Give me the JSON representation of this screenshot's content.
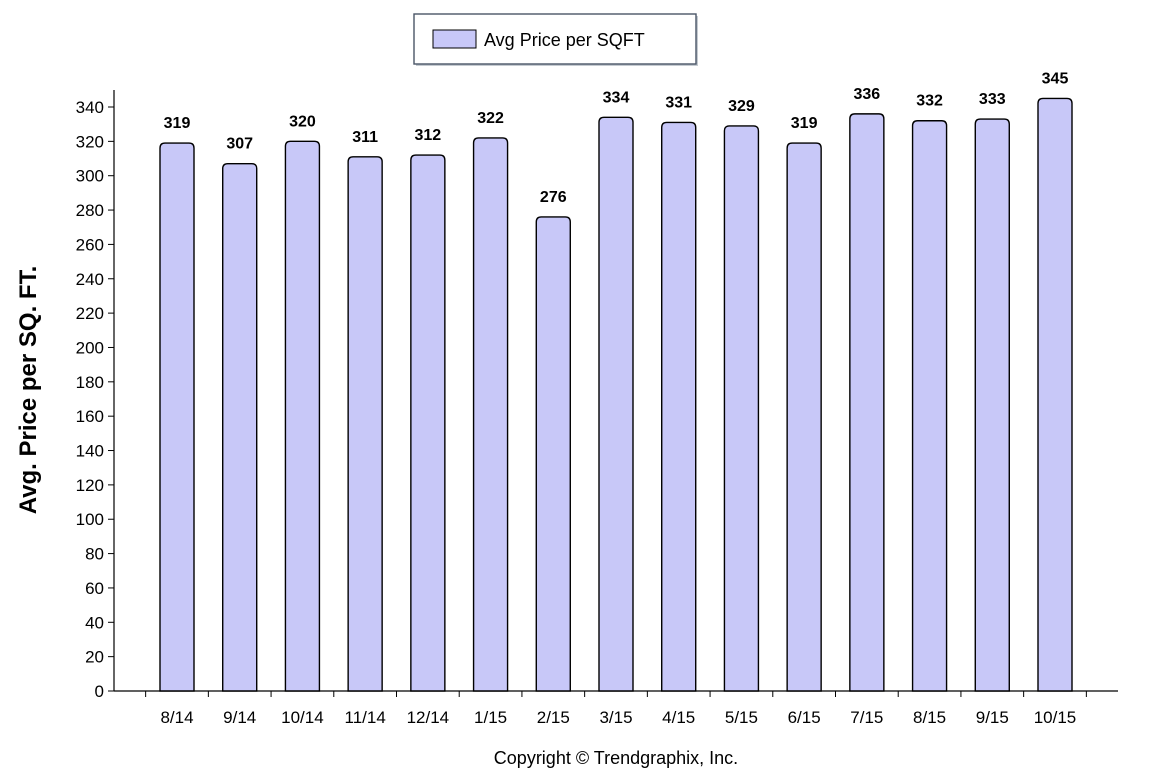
{
  "chart_data": {
    "type": "bar",
    "categories": [
      "8/14",
      "9/14",
      "10/14",
      "11/14",
      "12/14",
      "1/15",
      "2/15",
      "3/15",
      "4/15",
      "5/15",
      "6/15",
      "7/15",
      "8/15",
      "9/15",
      "10/15"
    ],
    "series": [
      {
        "name": "Avg Price per SQFT",
        "values": [
          319,
          307,
          320,
          311,
          312,
          322,
          276,
          334,
          331,
          329,
          319,
          336,
          332,
          333,
          345
        ],
        "color": "#c8c8f8"
      }
    ],
    "data_labels": [
      "319",
      "307",
      "320",
      "311",
      "312",
      "322",
      "276",
      "334",
      "331",
      "329",
      "319",
      "336",
      "332",
      "333",
      "345"
    ],
    "y_ticks": [
      0,
      20,
      40,
      60,
      80,
      100,
      120,
      140,
      160,
      180,
      200,
      220,
      240,
      260,
      280,
      300,
      320,
      340
    ],
    "ylim": [
      0,
      345
    ],
    "ylabel": "Avg. Price per SQ. FT.",
    "xlabel": "",
    "title": "",
    "legend": {
      "label": "Avg Price per SQFT",
      "position": "top-center"
    },
    "grid": false
  },
  "footer": {
    "copyright": "Copyright © Trendgraphix, Inc."
  }
}
